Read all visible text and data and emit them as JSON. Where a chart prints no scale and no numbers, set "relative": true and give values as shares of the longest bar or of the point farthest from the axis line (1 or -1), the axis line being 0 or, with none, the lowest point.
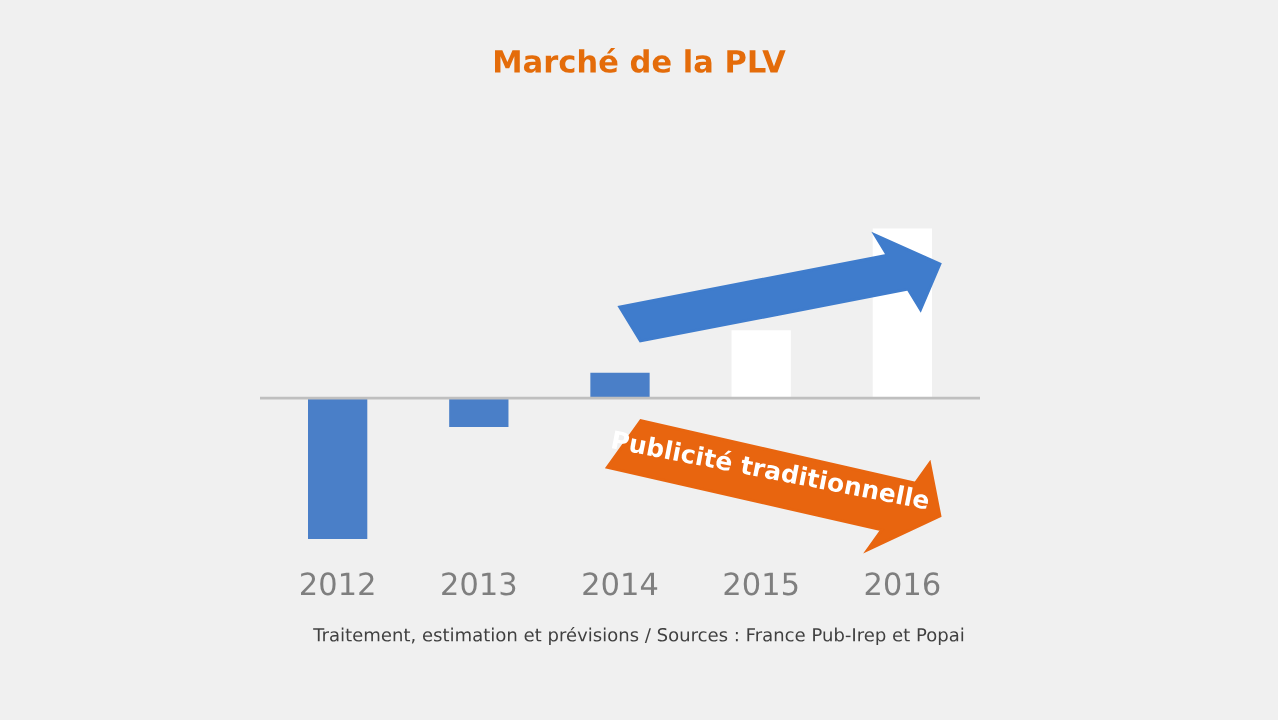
{
  "chart_data": {
    "type": "bar",
    "title": "Marché de la PLV",
    "categories": [
      "2012",
      "2013",
      "2014",
      "2015",
      "2016"
    ],
    "relative": true,
    "values": [
      -0.83,
      -0.17,
      0.15,
      0.4,
      1
    ],
    "colors": [
      "#4a7fc8",
      "#4a7fc8",
      "#4a7fc8",
      "#ffffff",
      "#ffffff"
    ],
    "annotations": [
      "Publicité traditionnelle",
      "Traitement, estimation et prévisions / Sources : France Pub-Irep et Popai"
    ]
  }
}
